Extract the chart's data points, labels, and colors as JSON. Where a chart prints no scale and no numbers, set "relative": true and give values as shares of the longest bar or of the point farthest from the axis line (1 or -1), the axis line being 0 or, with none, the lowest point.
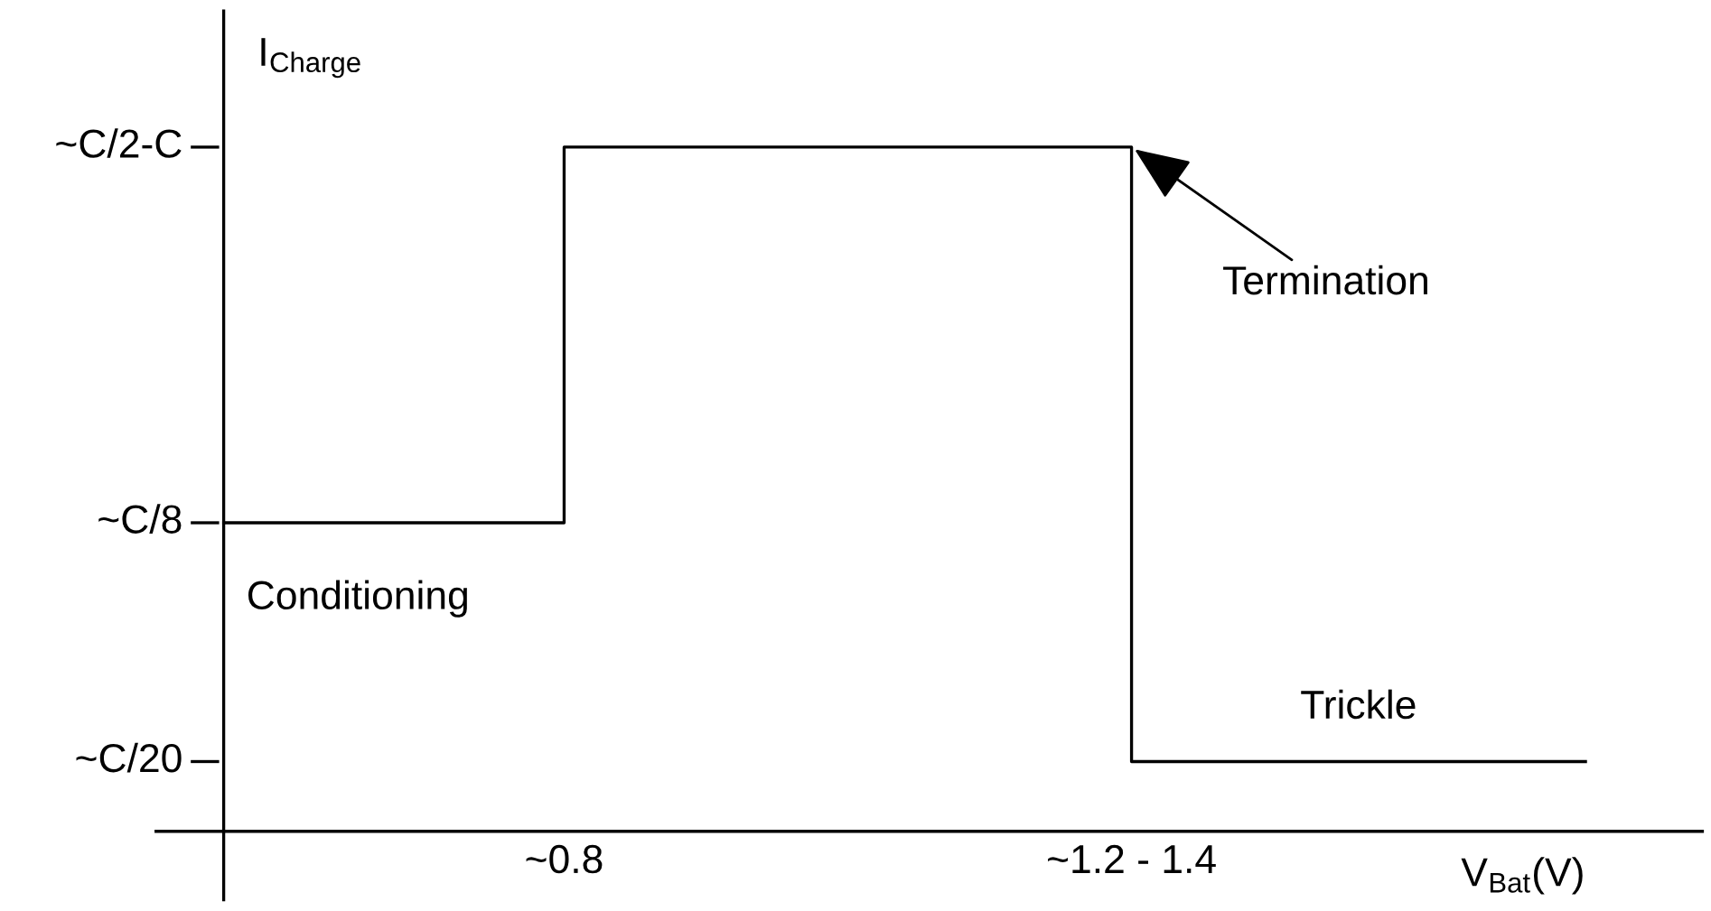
{
  "chart_data": {
    "type": "step",
    "relative": true,
    "xlabel": "V$_{Bat}$(V)",
    "ylabel": "I$_{Charge}$",
    "categories": [
      null,
      null,
      null,
      "~0.8",
      null,
      null,
      null,
      null,
      "~1.2 - 1.4",
      null,
      null,
      null,
      null
    ],
    "series": [
      {
        "color": "#000000",
        "values": [
          0.451,
          0.451,
          0.451,
          1.0,
          1.0,
          1.0,
          1.0,
          1.0,
          0.102,
          0.102,
          0.102,
          0.102,
          0.102
        ]
      }
    ],
    "annotations": [
      "~C/2-C",
      "~C/8",
      "~C/20",
      "Conditioning",
      "Termination",
      "Trickle"
    ]
  }
}
